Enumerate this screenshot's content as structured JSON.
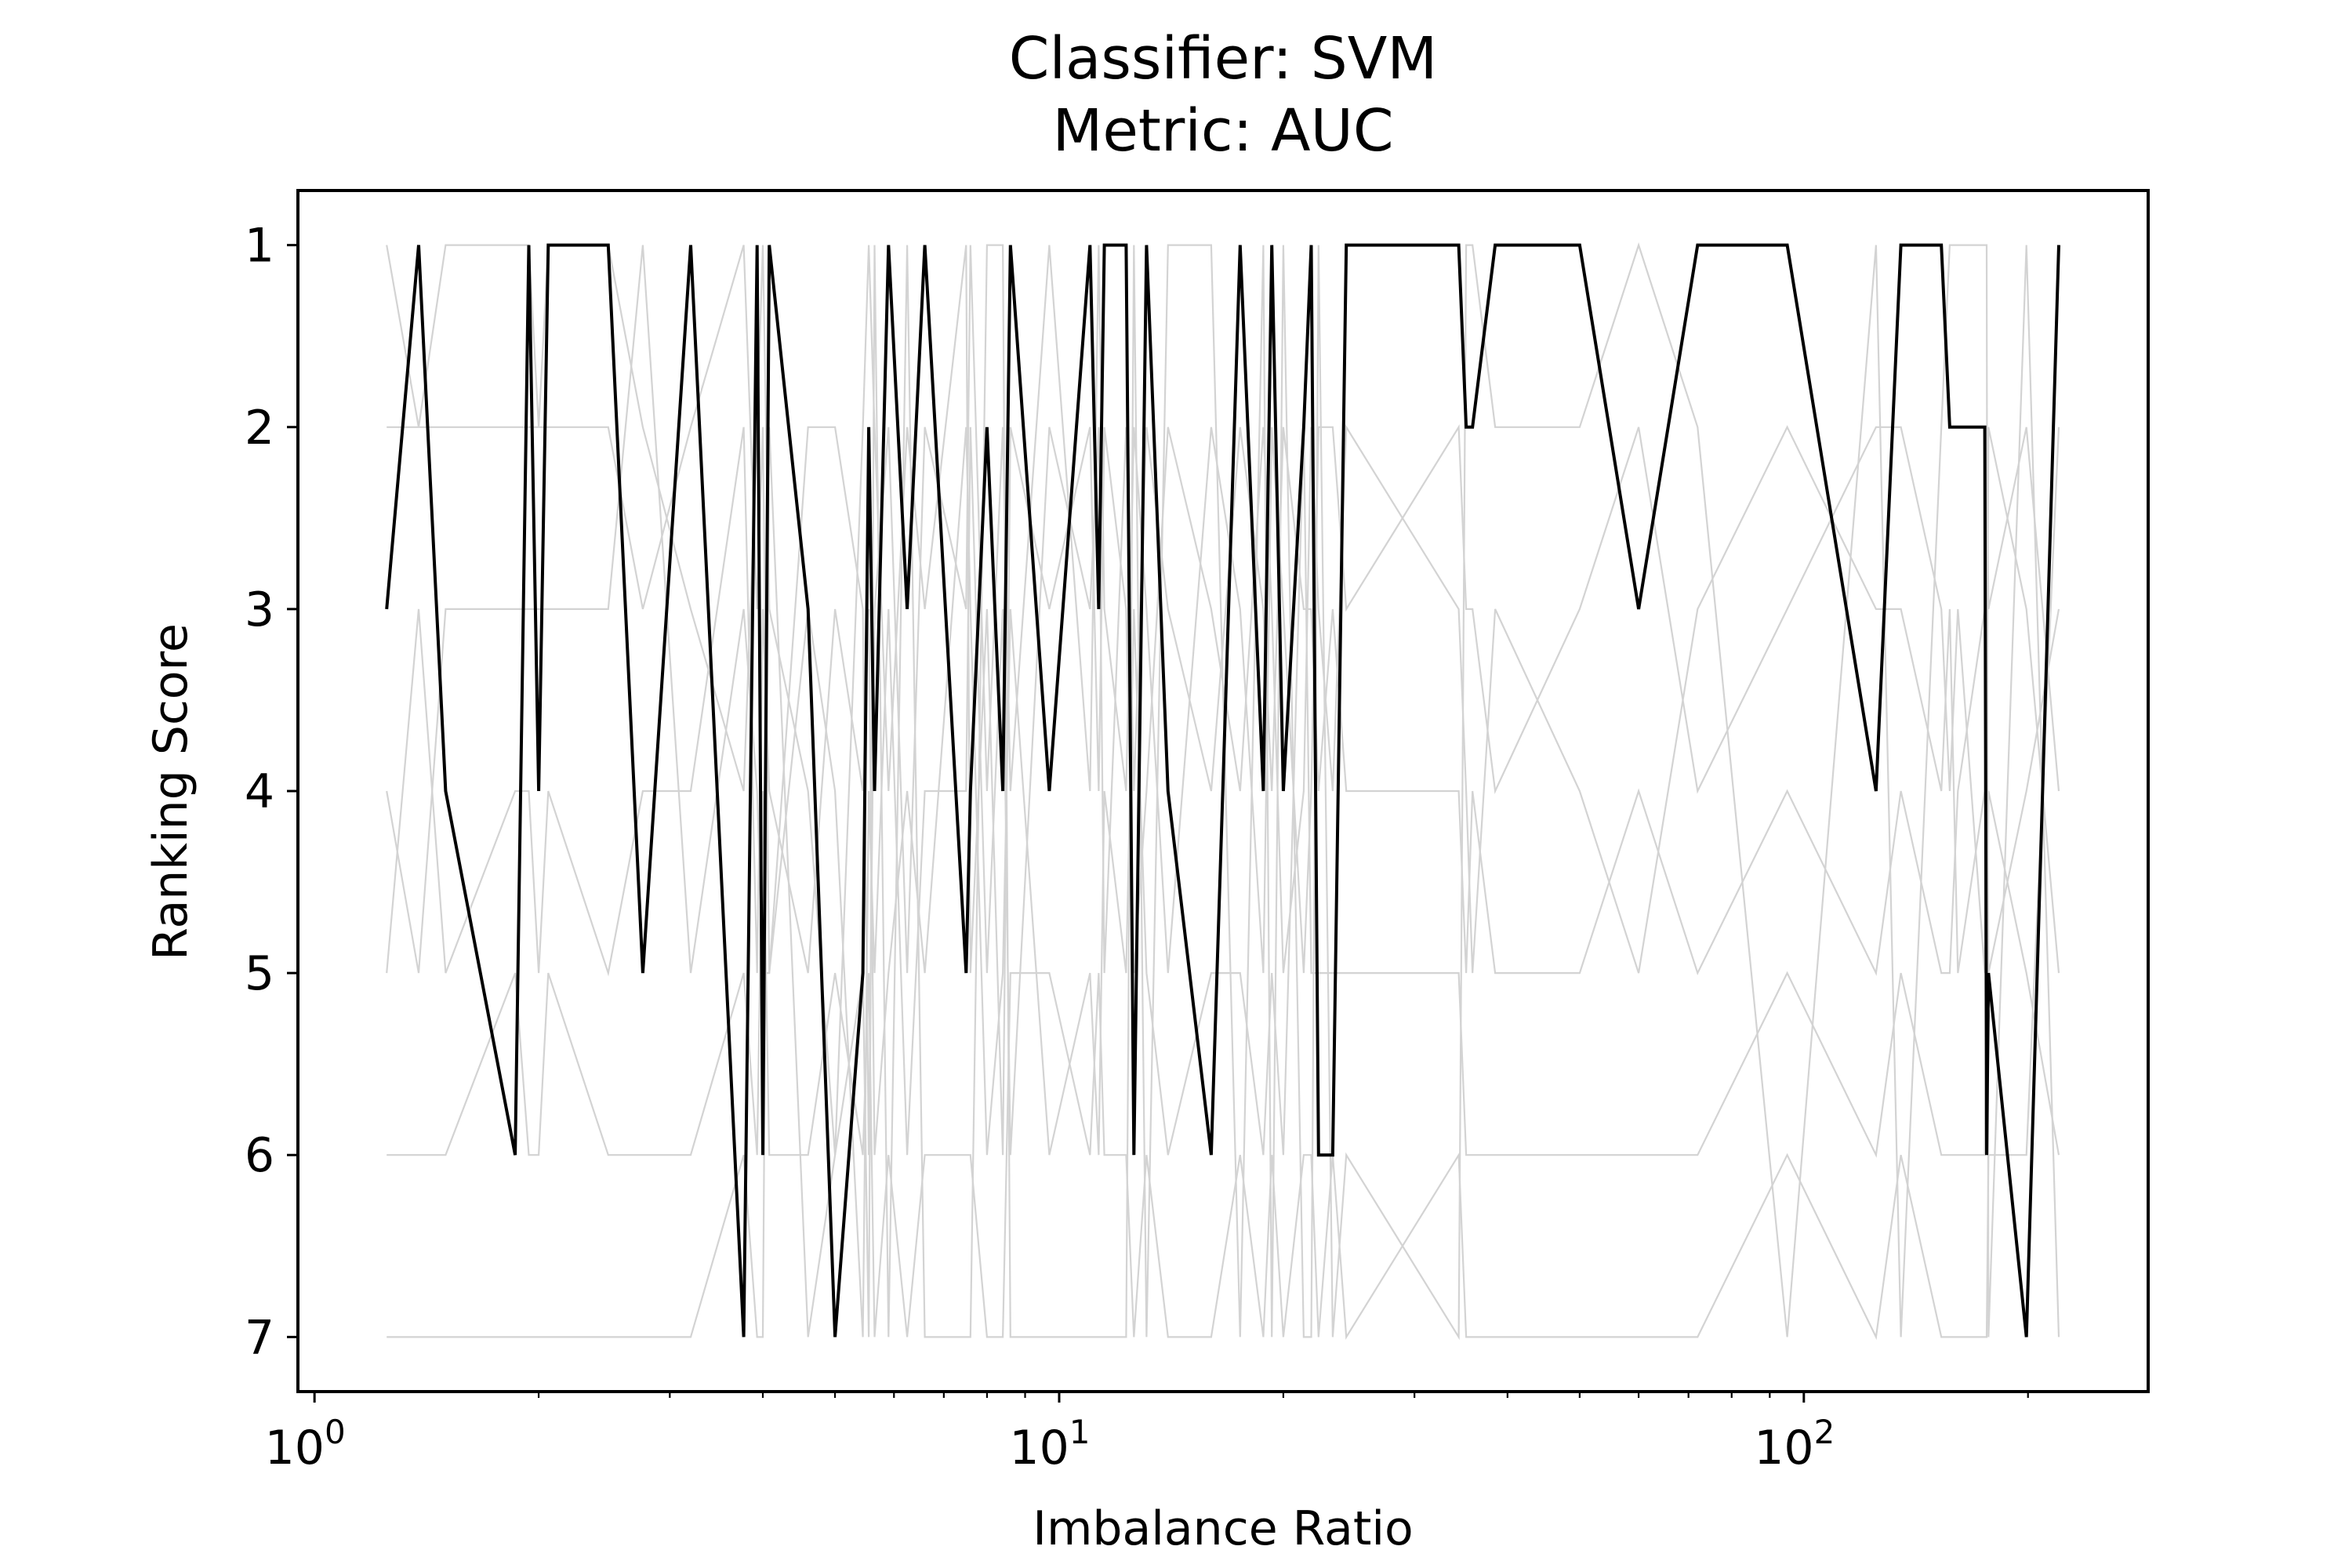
{
  "chart_data": {
    "type": "line",
    "title": "Classifier: SVM",
    "subtitle": "Metric: AUC",
    "xlabel": "Imbalance Ratio",
    "ylabel": "Ranking Score",
    "x_scale": "log",
    "xlim": [
      0.95,
      290
    ],
    "ylim": [
      7.3,
      0.7
    ],
    "y_inverted": true,
    "y_ticks": [
      "1",
      "2",
      "3",
      "4",
      "5",
      "6",
      "7"
    ],
    "x_ticks": [
      {
        "value": 1,
        "base": "10",
        "exp": "0"
      },
      {
        "value": 10,
        "base": "10",
        "exp": "1"
      },
      {
        "value": 100,
        "base": "10",
        "exp": "2"
      }
    ],
    "grid": false,
    "colors": {
      "highlight": "#000000",
      "background_series": "#d3d3d3"
    },
    "x": [
      1.25,
      1.38,
      1.5,
      1.86,
      1.94,
      2.0,
      2.06,
      2.48,
      2.76,
      3.2,
      3.77,
      3.93,
      4.0,
      4.08,
      4.6,
      5.0,
      5.45,
      5.55,
      5.65,
      5.9,
      6.25,
      6.6,
      7.5,
      7.6,
      8.0,
      8.4,
      8.6,
      9.7,
      11.0,
      11.3,
      11.5,
      12.3,
      12.6,
      13.1,
      14.0,
      16.0,
      17.5,
      18.8,
      19.3,
      20.0,
      21.3,
      21.8,
      22.3,
      23.3,
      24.3,
      34.4,
      35.2,
      35.9,
      38.5,
      50.0,
      60.0,
      72.0,
      95.0,
      125.0,
      135.0,
      153.0,
      157.0,
      161.0,
      175.0,
      176.0,
      177.0,
      199.0,
      220.0
    ],
    "series": [
      {
        "name": "",
        "highlight": true,
        "values": [
          3,
          1,
          4,
          6,
          1,
          4,
          1,
          1,
          5,
          1,
          7,
          1,
          6,
          1,
          3,
          7,
          5,
          2,
          4,
          1,
          3,
          1,
          5,
          4,
          2,
          4,
          1,
          4,
          1,
          3,
          1,
          1,
          6,
          1,
          4,
          6,
          1,
          4,
          1,
          4,
          2,
          1,
          6,
          6,
          1,
          1,
          2,
          2,
          1,
          1,
          3,
          1,
          1,
          4,
          1,
          1,
          2,
          2,
          2,
          6,
          5,
          7,
          1
        ]
      },
      {
        "name": "",
        "highlight": false,
        "values": [
          1,
          2,
          1,
          1,
          1,
          2,
          1,
          1,
          2,
          3,
          4,
          2,
          1,
          3,
          4,
          6,
          2,
          1,
          2,
          4,
          2,
          3,
          1,
          5,
          3,
          6,
          2,
          3,
          2,
          4,
          2,
          3,
          5,
          4,
          2,
          3,
          4,
          2,
          3,
          5,
          4,
          2,
          3,
          4,
          2,
          3,
          4,
          5,
          3,
          4,
          5,
          3,
          2,
          3,
          3,
          4,
          3,
          5,
          4,
          3,
          5,
          4,
          3
        ]
      },
      {
        "name": "",
        "highlight": false,
        "values": [
          2,
          2,
          2,
          2,
          2,
          2,
          2,
          2,
          3,
          2,
          1,
          3,
          2,
          5,
          2,
          2,
          3,
          6,
          3,
          2,
          5,
          2,
          3,
          1,
          4,
          2,
          4,
          1,
          4,
          1,
          3,
          4,
          2,
          3,
          5,
          2,
          3,
          5,
          2,
          3,
          5,
          4,
          2,
          2,
          3,
          2,
          3,
          3,
          4,
          3,
          2,
          4,
          3,
          2,
          2,
          3,
          4,
          3,
          5,
          2,
          3,
          2,
          4
        ]
      },
      {
        "name": "",
        "highlight": false,
        "values": [
          4,
          5,
          3,
          3,
          3,
          3,
          3,
          3,
          1,
          5,
          3,
          4,
          5,
          5,
          3,
          4,
          7,
          4,
          5,
          3,
          6,
          4,
          4,
          2,
          5,
          3,
          6,
          2,
          3,
          2,
          5,
          2,
          4,
          2,
          3,
          4,
          2,
          3,
          4,
          2,
          3,
          3,
          4,
          3,
          4,
          4,
          5,
          4,
          5,
          5,
          4,
          5,
          4,
          5,
          4,
          5,
          5,
          4,
          3,
          4,
          2,
          3,
          5
        ]
      },
      {
        "name": "",
        "highlight": false,
        "values": [
          5,
          3,
          5,
          4,
          4,
          5,
          4,
          5,
          4,
          4,
          2,
          5,
          3,
          4,
          5,
          3,
          4,
          3,
          6,
          5,
          4,
          5,
          2,
          3,
          6,
          5,
          3,
          6,
          5,
          6,
          4,
          5,
          3,
          5,
          6,
          5,
          5,
          6,
          5,
          6,
          2,
          5,
          5,
          5,
          5,
          5,
          6,
          6,
          6,
          6,
          6,
          6,
          5,
          6,
          5,
          6,
          6,
          6,
          6,
          5,
          4,
          5,
          6
        ]
      },
      {
        "name": "",
        "highlight": false,
        "values": [
          6,
          6,
          6,
          5,
          6,
          6,
          5,
          6,
          6,
          6,
          5,
          6,
          4,
          6,
          6,
          5,
          6,
          5,
          7,
          6,
          7,
          6,
          6,
          6,
          7,
          7,
          5,
          5,
          6,
          5,
          6,
          6,
          7,
          6,
          7,
          7,
          6,
          7,
          6,
          7,
          6,
          6,
          7,
          6,
          7,
          6,
          7,
          7,
          7,
          7,
          7,
          7,
          6,
          7,
          6,
          7,
          7,
          7,
          7,
          7,
          6,
          6,
          2
        ]
      },
      {
        "name": "",
        "highlight": false,
        "values": [
          7,
          7,
          7,
          7,
          7,
          7,
          7,
          7,
          7,
          7,
          6,
          7,
          7,
          2,
          7,
          6,
          5,
          7,
          1,
          7,
          1,
          7,
          7,
          7,
          1,
          1,
          7,
          7,
          7,
          7,
          7,
          7,
          1,
          7,
          1,
          1,
          7,
          1,
          7,
          1,
          7,
          7,
          1,
          7,
          6,
          7,
          1,
          1,
          2,
          2,
          1,
          2,
          7,
          1,
          7,
          2,
          1,
          1,
          1,
          1,
          7,
          1,
          7
        ]
      }
    ]
  }
}
